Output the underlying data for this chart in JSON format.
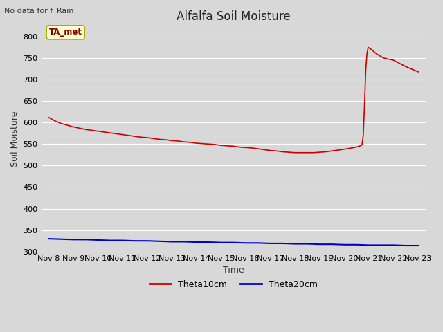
{
  "title": "Alfalfa Soil Moisture",
  "top_left_note": "No data for f_Rain",
  "ylabel": "Soil Moisture",
  "xlabel": "Time",
  "bg_color": "#d8d8d8",
  "plot_bg_color": "#d8d8d8",
  "ylim": [
    300,
    825
  ],
  "yticks": [
    300,
    350,
    400,
    450,
    500,
    550,
    600,
    650,
    700,
    750,
    800
  ],
  "xtick_labels": [
    "Nov 8",
    "Nov 9",
    "Nov 10",
    "Nov 11",
    "Nov 12",
    "Nov 13",
    "Nov 14",
    "Nov 15",
    "Nov 16",
    "Nov 17",
    "Nov 18",
    "Nov 19",
    "Nov 20",
    "Nov 21",
    "Nov 22",
    "Nov 23"
  ],
  "legend_entries": [
    "Theta10cm",
    "Theta20cm"
  ],
  "legend_colors": [
    "#cc0000",
    "#0000cc"
  ],
  "annotation_box": "TA_met",
  "annotation_box_bg": "#ffffcc",
  "annotation_box_border": "#aaaa00",
  "annotation_text_color": "#880000",
  "theta10_x": [
    0,
    0.13,
    0.25,
    0.5,
    0.75,
    1.0,
    1.25,
    1.5,
    1.75,
    2.0,
    2.25,
    2.5,
    2.75,
    3.0,
    3.25,
    3.5,
    3.75,
    4.0,
    4.25,
    4.5,
    4.75,
    5.0,
    5.25,
    5.5,
    5.75,
    6.0,
    6.25,
    6.5,
    6.75,
    7.0,
    7.25,
    7.5,
    7.75,
    8.0,
    8.25,
    8.5,
    8.75,
    9.0,
    9.25,
    9.5,
    9.75,
    10.0,
    10.25,
    10.5,
    10.75,
    11.0,
    11.25,
    11.5,
    11.75,
    12.0,
    12.2,
    12.4,
    12.55,
    12.65,
    12.72,
    12.77,
    12.82,
    12.87,
    12.92,
    12.97,
    13.02,
    13.1,
    13.3,
    13.6,
    14.0,
    14.5,
    15.0
  ],
  "theta10_y": [
    612,
    608,
    604,
    598,
    594,
    590,
    587,
    584,
    582,
    580,
    578,
    576,
    574,
    572,
    570,
    568,
    566,
    565,
    563,
    561,
    560,
    558,
    557,
    555,
    554,
    552,
    551,
    550,
    549,
    547,
    546,
    545,
    543,
    542,
    541,
    539,
    537,
    535,
    534,
    532,
    531,
    530,
    530,
    530,
    530,
    531,
    532,
    534,
    536,
    538,
    540,
    542,
    544,
    546,
    548,
    570,
    640,
    720,
    760,
    775,
    773,
    770,
    760,
    750,
    745,
    730,
    718
  ],
  "theta20_x": [
    0,
    0.5,
    1,
    1.5,
    2,
    2.5,
    3,
    3.5,
    4,
    4.5,
    5,
    5.5,
    6,
    6.5,
    7,
    7.5,
    8,
    8.5,
    9,
    9.5,
    10,
    10.5,
    11,
    11.5,
    12,
    12.5,
    13,
    13.5,
    14,
    14.5,
    15
  ],
  "theta20_y": [
    330,
    329,
    328,
    328,
    327,
    326,
    326,
    325,
    325,
    324,
    323,
    323,
    322,
    322,
    321,
    321,
    320,
    320,
    319,
    319,
    318,
    318,
    317,
    317,
    316,
    316,
    315,
    315,
    315,
    314,
    314
  ],
  "line_color_red": "#cc0000",
  "line_color_blue": "#0000cc",
  "grid_color": "#ffffff",
  "title_fontsize": 12,
  "label_fontsize": 9,
  "tick_fontsize": 8
}
